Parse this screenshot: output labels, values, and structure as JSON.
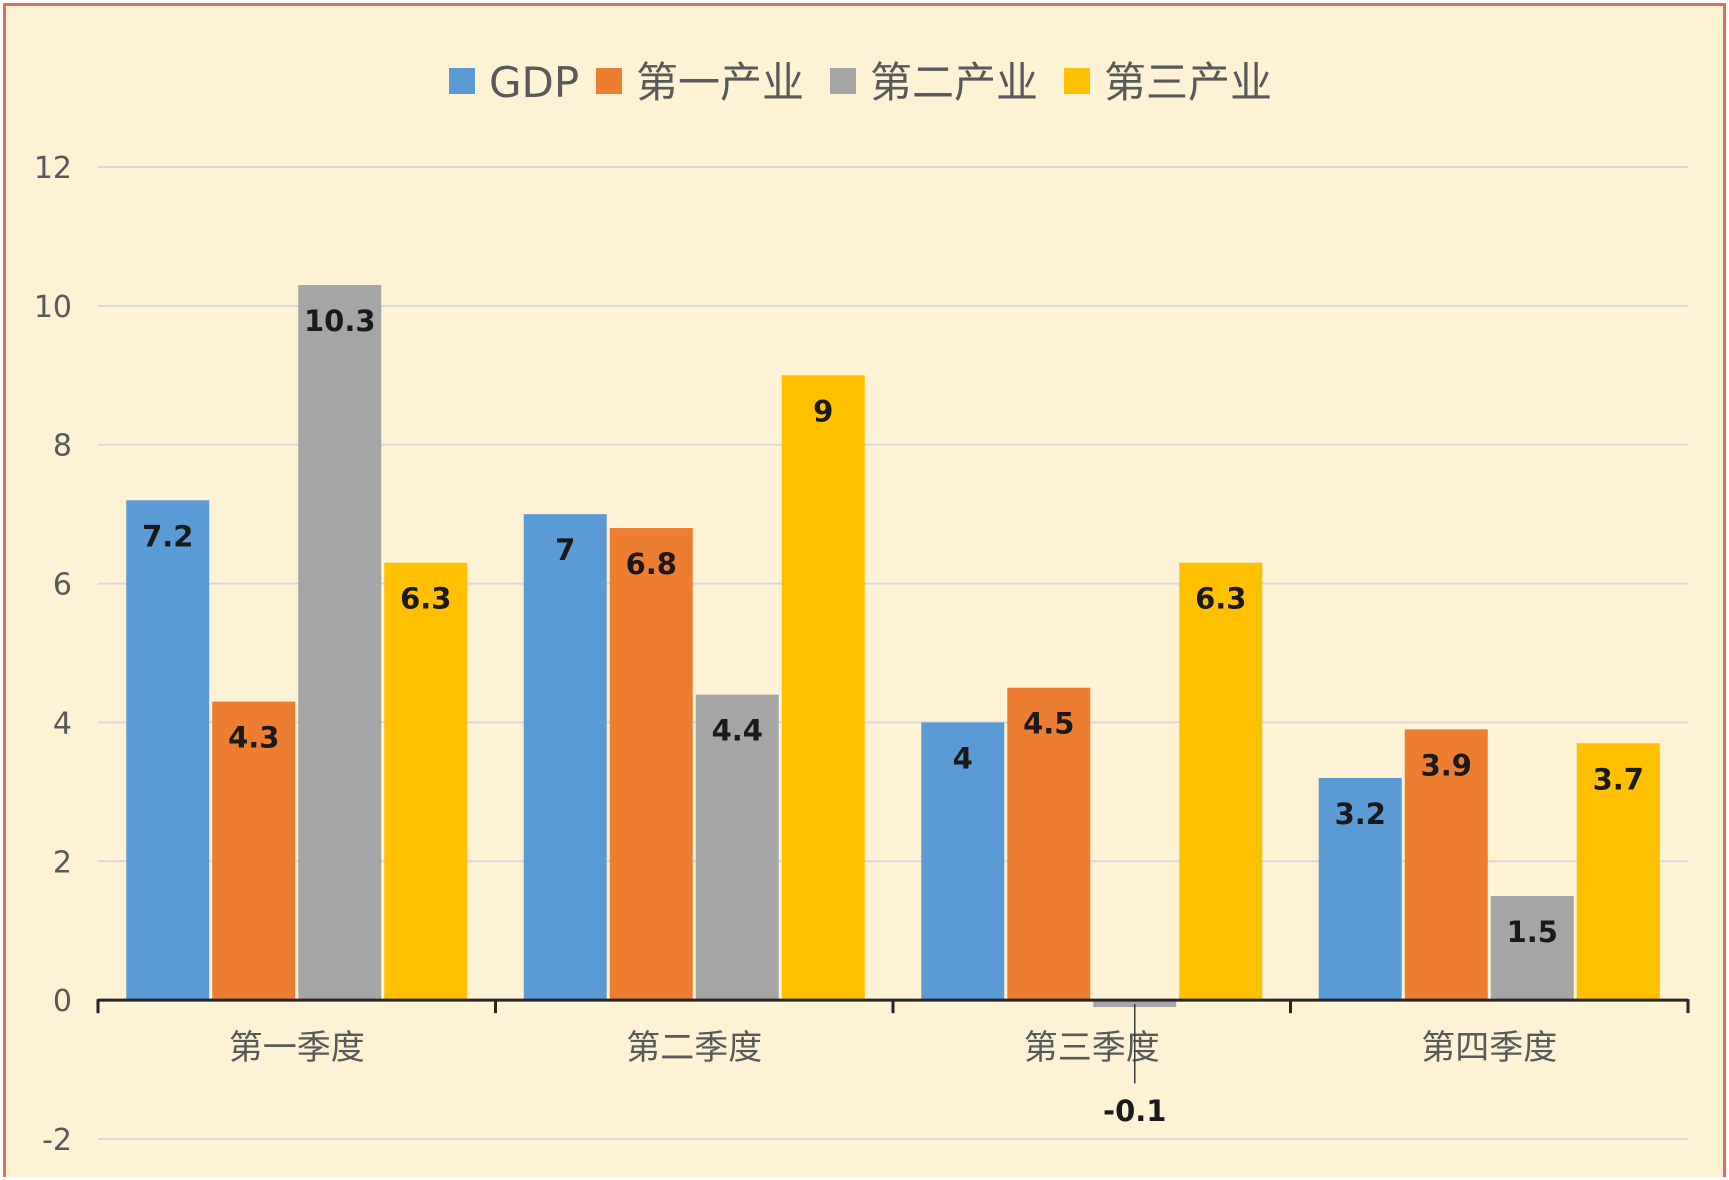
{
  "chart_data": {
    "type": "bar",
    "title": "",
    "xlabel": "",
    "ylabel": "",
    "categories": [
      "第一季度",
      "第二季度",
      "第三季度",
      "第四季度"
    ],
    "series": [
      {
        "name": "GDP",
        "color": "#5b9bd5",
        "values": [
          7.2,
          7,
          4,
          3.2
        ],
        "labels": [
          "7.2",
          "7",
          "4",
          "3.2"
        ]
      },
      {
        "name": "第一产业",
        "color": "#ed7d31",
        "values": [
          4.3,
          6.8,
          4.5,
          3.9
        ],
        "labels": [
          "4.3",
          "6.8",
          "4.5",
          "3.9"
        ]
      },
      {
        "name": "第二产业",
        "color": "#a5a5a5",
        "values": [
          10.3,
          4.4,
          -0.1,
          1.5
        ],
        "labels": [
          "10.3",
          "4.4",
          "-0.1",
          "1.5"
        ]
      },
      {
        "name": "第三产业",
        "color": "#ffc000",
        "values": [
          6.3,
          9,
          6.3,
          3.7
        ],
        "labels": [
          "6.3",
          "9",
          "6.3",
          "3.7"
        ]
      }
    ],
    "ylim": [
      -2,
      12
    ],
    "yticks": [
      {
        "value": -2,
        "label": "-2"
      },
      {
        "value": 0,
        "label": "0"
      },
      {
        "value": 2,
        "label": "2"
      },
      {
        "value": 4,
        "label": "4"
      },
      {
        "value": 6,
        "label": "6"
      },
      {
        "value": 8,
        "label": "8"
      },
      {
        "value": 10,
        "label": "10"
      },
      {
        "value": 12,
        "label": "12"
      }
    ],
    "grid": true,
    "legend_position": "top-center",
    "background_color": "#fdf3d4",
    "border_color": "#e86a5e",
    "gridline_color": "#d9d9d9",
    "axis_color": "#262626"
  }
}
